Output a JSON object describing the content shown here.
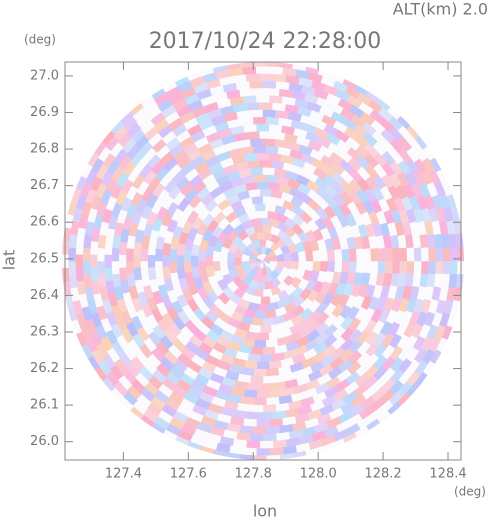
{
  "chart_data": {
    "type": "ppi",
    "title": "2017/10/24 22:28:00",
    "annotation": "ALT(km) 2.0",
    "x_label": "lon",
    "y_label": "lat",
    "x_unit": "(deg)",
    "y_unit": "(deg)",
    "xlim": [
      127.22,
      128.44
    ],
    "ylim": [
      25.95,
      27.038
    ],
    "xticks": [
      127.4,
      127.6,
      127.8,
      {
        "value": 128,
        "label": "128.0"
      },
      128.2,
      128.4
    ],
    "yticks": [
      {
        "value": 26,
        "label": "26.0"
      },
      26.1,
      26.2,
      26.3,
      26.4,
      26.5,
      26.6,
      26.7,
      26.8,
      26.9,
      {
        "value": 27,
        "label": "27.0"
      }
    ]
  }
}
